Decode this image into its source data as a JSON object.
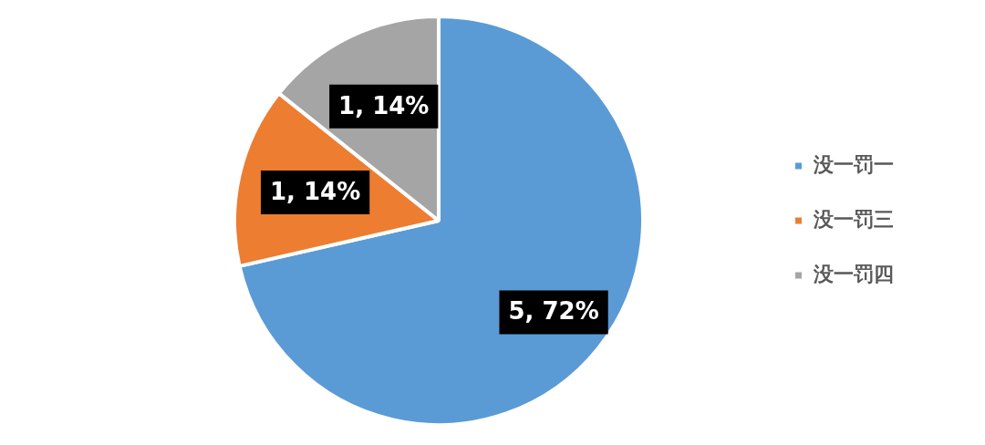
{
  "chart_data": {
    "type": "pie",
    "categories": [
      "没一罚一",
      "没一罚三",
      "没一罚四"
    ],
    "values": [
      5,
      1,
      1
    ],
    "colors": [
      "#5b9bd5",
      "#ed7d31",
      "#a5a5a5"
    ],
    "value_labels": [
      "5, 72%",
      "1, 14%",
      "1, 14%"
    ],
    "legend": "right"
  }
}
